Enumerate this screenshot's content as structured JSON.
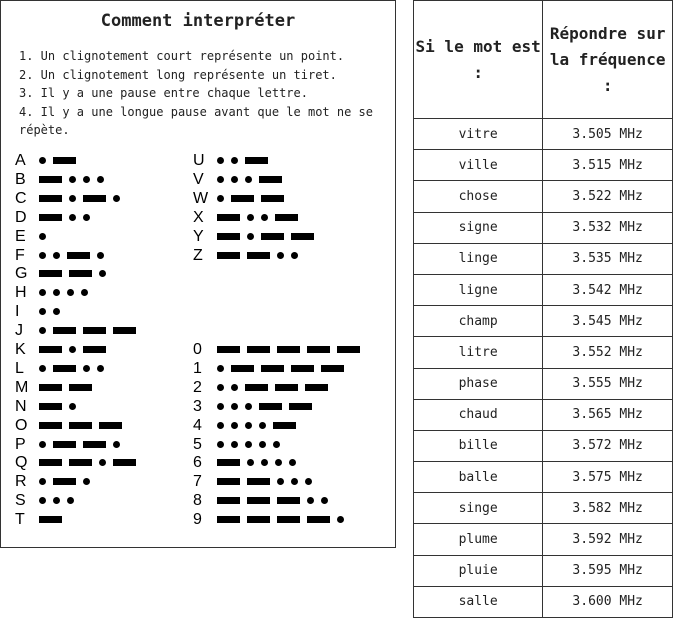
{
  "instructions": {
    "title": "Comment interpréter",
    "rules": [
      "1. Un clignotement court représente un point.",
      "2. Un clignotement long représente un tiret.",
      "3. Il y a une pause entre chaque lettre.",
      "4. Il y a une longue pause avant que le mot ne se répète."
    ]
  },
  "morse_left": [
    {
      "char": "A",
      "code": ".-"
    },
    {
      "char": "B",
      "code": "-..."
    },
    {
      "char": "C",
      "code": "-.-."
    },
    {
      "char": "D",
      "code": "-.."
    },
    {
      "char": "E",
      "code": "."
    },
    {
      "char": "F",
      "code": "..-."
    },
    {
      "char": "G",
      "code": "--."
    },
    {
      "char": "H",
      "code": "...."
    },
    {
      "char": "I",
      "code": ".."
    },
    {
      "char": "J",
      "code": ".---"
    },
    {
      "char": "K",
      "code": "-.-"
    },
    {
      "char": "L",
      "code": ".-.."
    },
    {
      "char": "M",
      "code": "--"
    },
    {
      "char": "N",
      "code": "-."
    },
    {
      "char": "O",
      "code": "---"
    },
    {
      "char": "P",
      "code": ".--."
    },
    {
      "char": "Q",
      "code": "--.-"
    },
    {
      "char": "R",
      "code": ".-."
    },
    {
      "char": "S",
      "code": "..."
    },
    {
      "char": "T",
      "code": "-"
    }
  ],
  "morse_right_letters": [
    {
      "char": "U",
      "code": "..-"
    },
    {
      "char": "V",
      "code": "...-"
    },
    {
      "char": "W",
      "code": ".--"
    },
    {
      "char": "X",
      "code": "-..-"
    },
    {
      "char": "Y",
      "code": "-.--"
    },
    {
      "char": "Z",
      "code": "--.."
    }
  ],
  "morse_right_digits": [
    {
      "char": "0",
      "code": "-----"
    },
    {
      "char": "1",
      "code": ".----"
    },
    {
      "char": "2",
      "code": "..---"
    },
    {
      "char": "3",
      "code": "...--"
    },
    {
      "char": "4",
      "code": "....-"
    },
    {
      "char": "5",
      "code": "....."
    },
    {
      "char": "6",
      "code": "-...."
    },
    {
      "char": "7",
      "code": "--..."
    },
    {
      "char": "8",
      "code": "---.."
    },
    {
      "char": "9",
      "code": "----."
    }
  ],
  "frequency_table": {
    "header_word": "Si le mot est :",
    "header_freq": "Répondre sur la fréquence :",
    "rows": [
      {
        "word": "vitre",
        "freq": "3.505 MHz"
      },
      {
        "word": "ville",
        "freq": "3.515 MHz"
      },
      {
        "word": "chose",
        "freq": "3.522 MHz"
      },
      {
        "word": "signe",
        "freq": "3.532 MHz"
      },
      {
        "word": "linge",
        "freq": "3.535 MHz"
      },
      {
        "word": "ligne",
        "freq": "3.542 MHz"
      },
      {
        "word": "champ",
        "freq": "3.545 MHz"
      },
      {
        "word": "litre",
        "freq": "3.552 MHz"
      },
      {
        "word": "phase",
        "freq": "3.555 MHz"
      },
      {
        "word": "chaud",
        "freq": "3.565 MHz"
      },
      {
        "word": "bille",
        "freq": "3.572 MHz"
      },
      {
        "word": "balle",
        "freq": "3.575 MHz"
      },
      {
        "word": "singe",
        "freq": "3.582 MHz"
      },
      {
        "word": "plume",
        "freq": "3.592 MHz"
      },
      {
        "word": "pluie",
        "freq": "3.595 MHz"
      },
      {
        "word": "salle",
        "freq": "3.600 MHz"
      }
    ]
  }
}
